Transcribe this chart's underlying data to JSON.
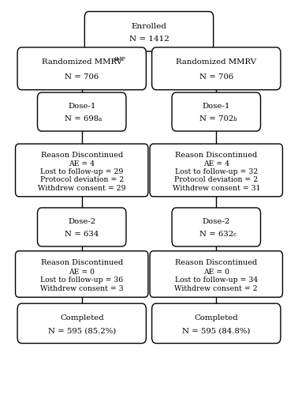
{
  "bg_color": "#ffffff",
  "border_color": "#000000",
  "text_color": "#000000",
  "fontsize": 7.2,
  "lw": 1.0,
  "enrolled_text1": "Enrolled",
  "enrolled_text2": "N = 1412",
  "rand_left_text1": "Randomized MMRV",
  "rand_left_amp": "AMP",
  "rand_left_text2": "N = 706",
  "rand_right_text1": "Randomized MMRV",
  "rand_right_text2": "N = 706",
  "dose1_left_t1": "Dose-1",
  "dose1_left_t2": "N = 698",
  "dose1_left_sup": "a",
  "dose1_right_t1": "Dose-1",
  "dose1_right_t2": "N = 702",
  "dose1_right_sup": "b",
  "disc1_left_lines": [
    "AE = 4",
    "Lost to follow-up = 29",
    "Protocol deviation = 2",
    "Withdrew consent = 29"
  ],
  "disc1_right_lines": [
    "AE = 4",
    "Lost to follow-up = 32",
    "Protocol deviation = 2",
    "Withdrew consent = 31"
  ],
  "dose2_left_t1": "Dose-2",
  "dose2_left_t2": "N = 634",
  "dose2_right_t1": "Dose-2",
  "dose2_right_t2": "N = 632",
  "dose2_right_sup": "c",
  "disc2_left_lines": [
    "AE = 0",
    "Lost to follow-up = 36",
    "Withdrew consent = 3"
  ],
  "disc2_right_lines": [
    "AE = 0",
    "Lost to follow-up = 34",
    "Withdrew consent = 2"
  ],
  "comp_left_t1": "Completed",
  "comp_left_t2": "N = 595 (85.2%)",
  "comp_right_t1": "Completed",
  "comp_right_t2": "N = 595 (84.8%)"
}
